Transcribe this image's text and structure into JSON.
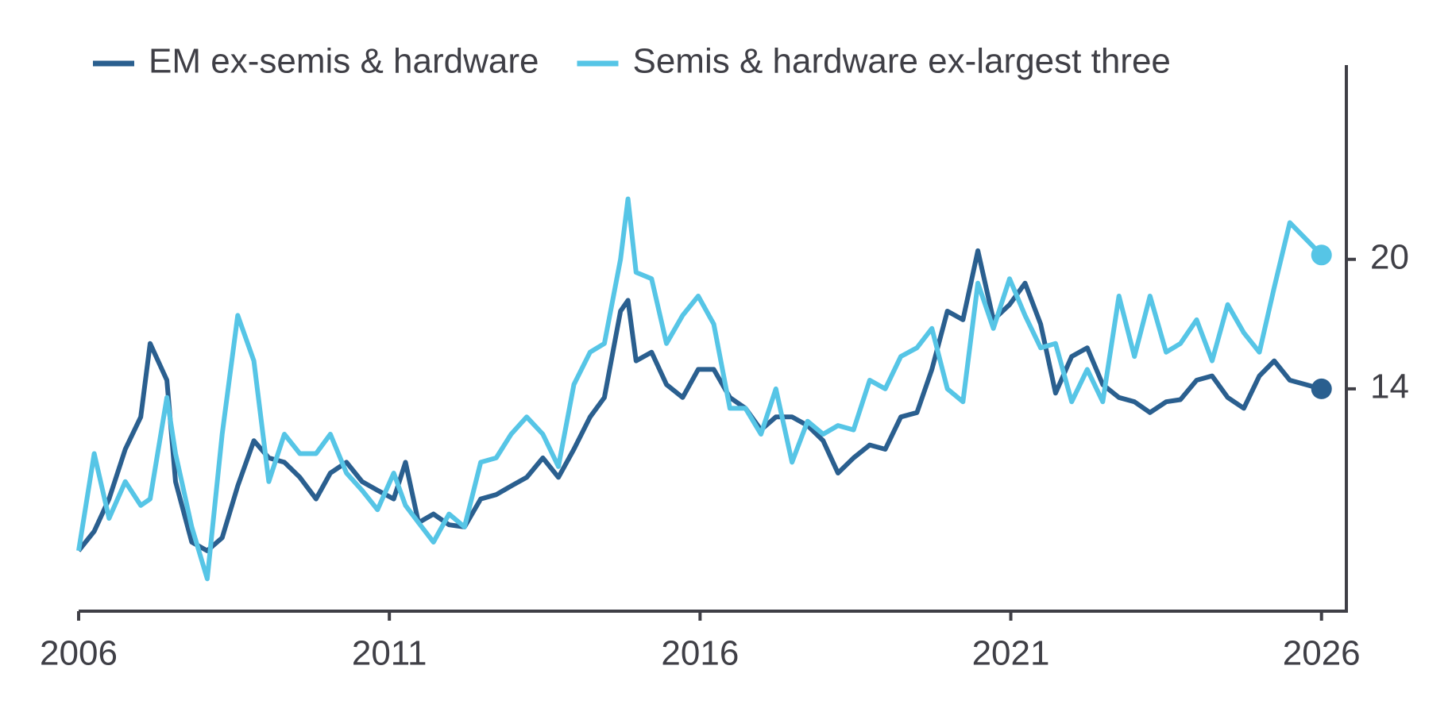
{
  "chart_data": {
    "type": "line",
    "x": [
      2006.0,
      2006.25,
      2006.49,
      2006.75,
      2007.0,
      2007.15,
      2007.42,
      2007.56,
      2007.82,
      2008.07,
      2008.31,
      2008.56,
      2008.82,
      2009.06,
      2009.31,
      2009.56,
      2009.82,
      2010.05,
      2010.31,
      2010.56,
      2010.81,
      2011.07,
      2011.26,
      2011.47,
      2011.71,
      2011.96,
      2012.21,
      2012.47,
      2012.72,
      2012.96,
      2013.21,
      2013.47,
      2013.72,
      2013.97,
      2014.23,
      2014.46,
      2014.72,
      2014.84,
      2014.97,
      2015.22,
      2015.46,
      2015.72,
      2015.97,
      2016.22,
      2016.48,
      2016.73,
      2016.98,
      2017.22,
      2017.48,
      2017.73,
      2017.98,
      2018.22,
      2018.47,
      2018.73,
      2018.98,
      2019.23,
      2019.49,
      2019.73,
      2019.98,
      2020.23,
      2020.47,
      2020.72,
      2020.98,
      2021.23,
      2021.48,
      2021.72,
      2021.98,
      2022.23,
      2022.48,
      2022.74,
      2022.99,
      2023.24,
      2023.5,
      2023.73,
      2023.99,
      2024.24,
      2024.49,
      2024.75,
      2025.0,
      2025.24,
      2025.49,
      2026.0
    ],
    "series": [
      {
        "name": "EM ex-semis & hardware",
        "color": "#2a5f8f",
        "values": [
          6.5,
          7.4,
          8.9,
          11.2,
          12.7,
          16.1,
          14.4,
          9.7,
          6.9,
          6.5,
          7.1,
          9.5,
          11.6,
          10.8,
          10.6,
          9.9,
          8.9,
          10.1,
          10.6,
          9.7,
          9.3,
          8.9,
          10.6,
          7.8,
          8.2,
          7.7,
          7.6,
          8.9,
          9.1,
          9.5,
          9.9,
          10.8,
          9.9,
          11.2,
          12.7,
          13.6,
          17.6,
          18.1,
          15.3,
          15.7,
          14.2,
          13.6,
          14.9,
          14.9,
          13.6,
          13.1,
          12.1,
          12.7,
          12.7,
          12.3,
          11.6,
          10.1,
          10.8,
          11.4,
          11.2,
          12.7,
          12.9,
          14.9,
          17.6,
          17.2,
          20.4,
          17.2,
          17.9,
          18.9,
          17.0,
          13.8,
          15.5,
          15.9,
          14.2,
          13.6,
          13.4,
          12.9,
          13.4,
          13.5,
          14.4,
          14.6,
          13.6,
          13.1,
          14.6,
          15.3,
          14.4,
          14.0
        ]
      },
      {
        "name": "Semis & hardware ex-largest three",
        "color": "#56c5e6",
        "values": [
          6.5,
          11.0,
          8.0,
          9.7,
          8.6,
          8.9,
          13.6,
          11.0,
          7.6,
          5.2,
          11.9,
          17.4,
          15.3,
          9.7,
          11.9,
          11.0,
          11.0,
          11.9,
          10.1,
          9.3,
          8.4,
          10.1,
          8.6,
          7.8,
          6.9,
          8.2,
          7.6,
          10.6,
          10.8,
          11.9,
          12.7,
          11.9,
          10.4,
          14.2,
          15.7,
          16.1,
          20.0,
          22.8,
          19.4,
          19.1,
          16.1,
          17.4,
          18.3,
          17.0,
          13.1,
          13.1,
          11.9,
          14.0,
          10.6,
          12.5,
          11.9,
          12.3,
          12.1,
          14.4,
          14.0,
          15.5,
          15.9,
          16.8,
          14.0,
          13.4,
          18.9,
          16.8,
          19.1,
          17.4,
          15.9,
          16.1,
          13.4,
          14.9,
          13.4,
          18.3,
          15.5,
          18.3,
          15.7,
          16.1,
          17.2,
          15.3,
          17.9,
          16.6,
          15.7,
          18.7,
          21.7,
          20.2
        ]
      }
    ],
    "xlim": [
      2006,
      2026.4
    ],
    "xticks": [
      2006,
      2011,
      2016,
      2021,
      2026
    ],
    "ylim": [
      3.7,
      29
    ],
    "yticks": [
      14,
      20
    ],
    "y_axis_side": "right",
    "grid": false,
    "end_markers": true
  }
}
